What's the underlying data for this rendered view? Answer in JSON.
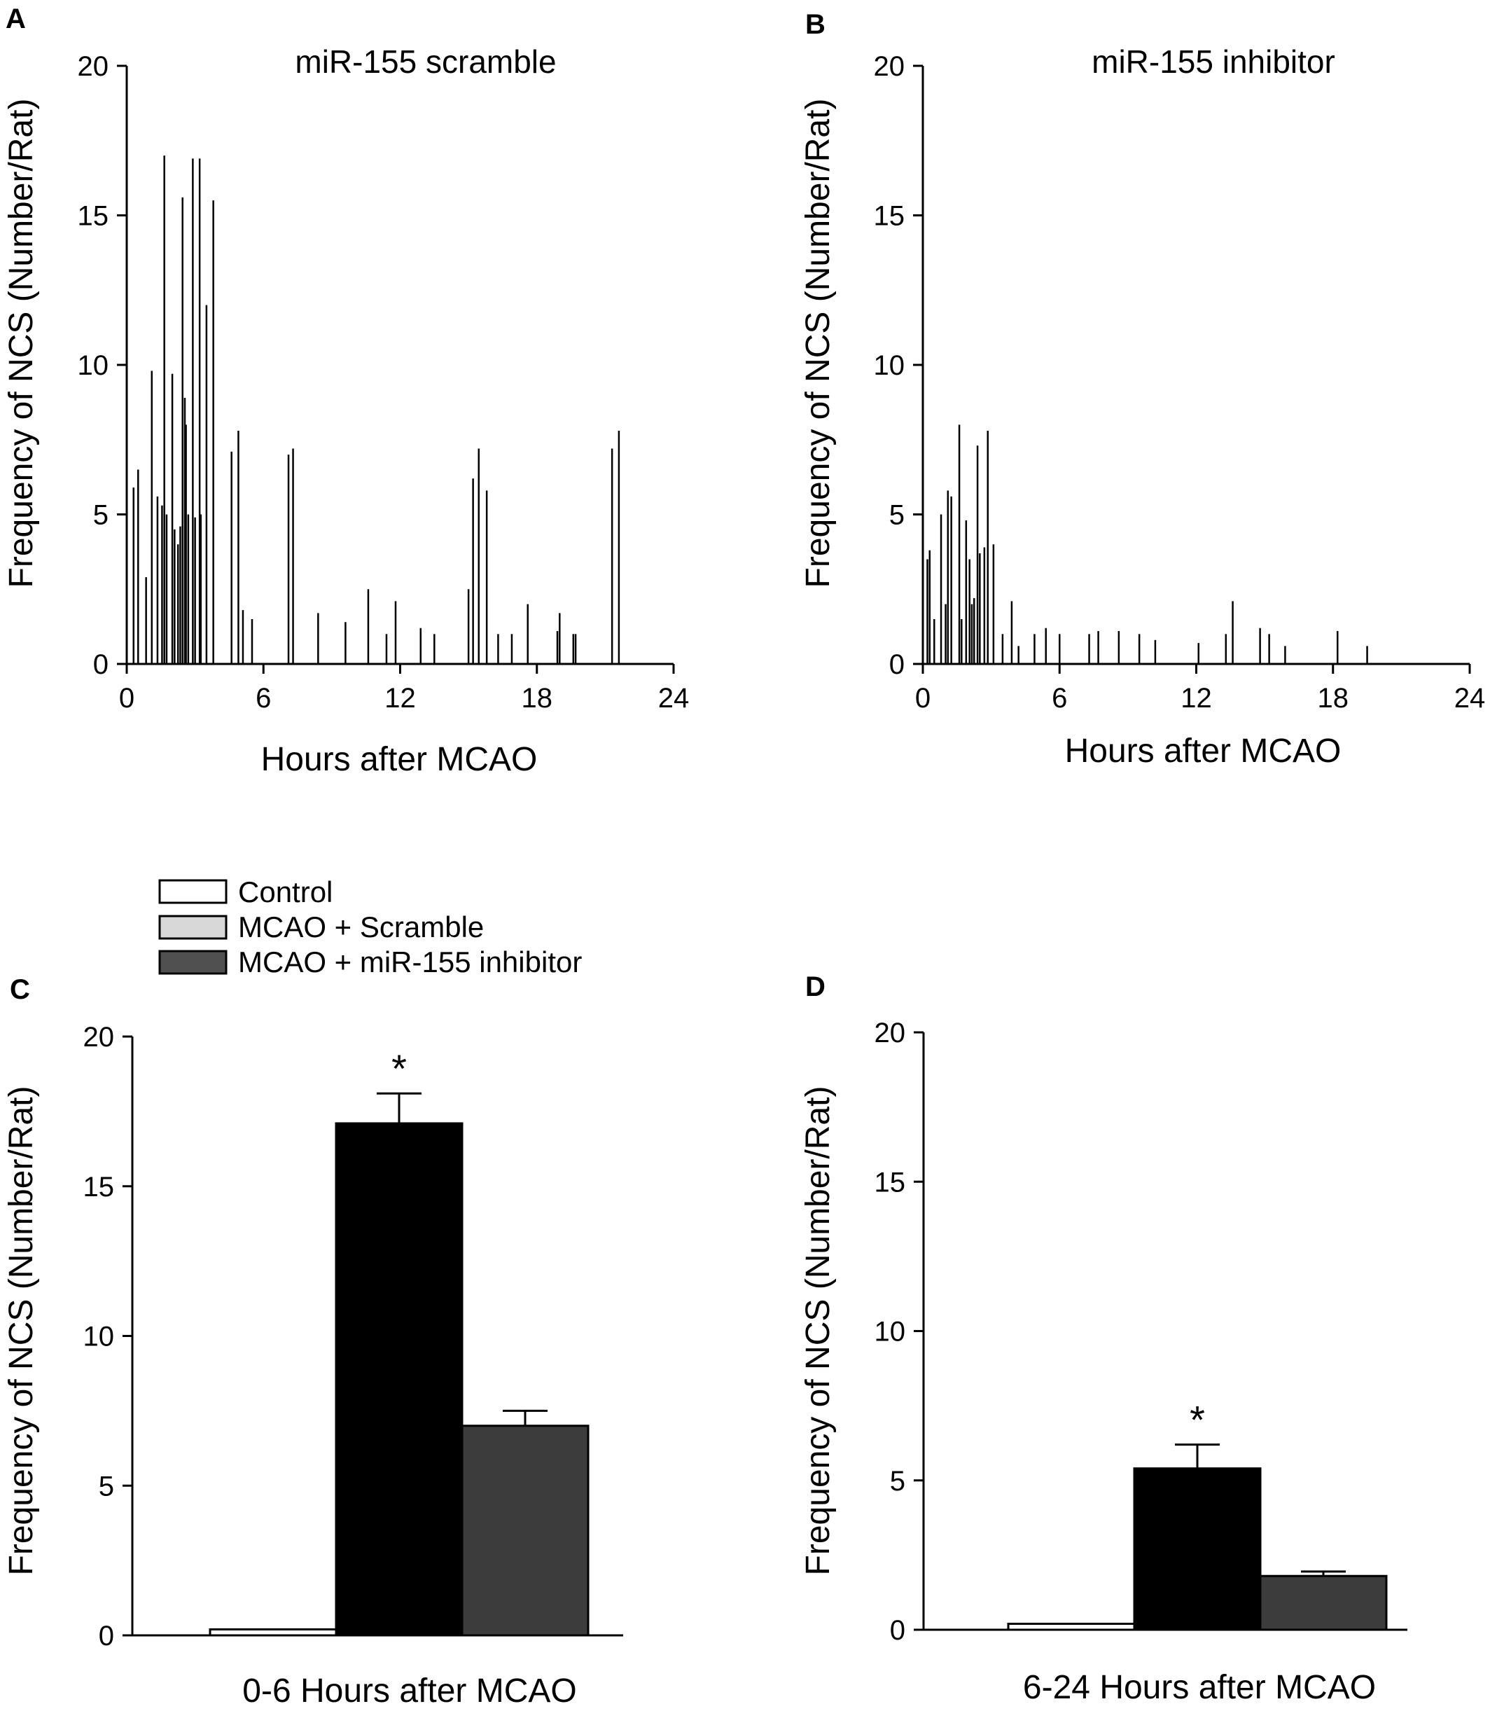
{
  "colors": {
    "control": "#ffffff",
    "scramble": "#000000",
    "inhibitor": "#3c3c3c",
    "legend_scramble": "#d8d8d8",
    "legend_inhibitor": "#505050"
  },
  "legend": {
    "items": [
      "Control",
      "MCAO + Scramble",
      "MCAO + miR-155 inhibitor"
    ]
  },
  "chart_data": [
    {
      "panel": "A",
      "type": "bar",
      "title": "miR-155 scramble",
      "xlabel": "Hours after MCAO",
      "ylabel": "Frequency of NCS (Number/Rat)",
      "xlim": [
        0,
        24
      ],
      "ylim": [
        0,
        20
      ],
      "xticks": [
        "0",
        "6",
        "12",
        "18",
        "24"
      ],
      "yticks": [
        "0",
        "5",
        "10",
        "15",
        "20"
      ],
      "x": [
        0.3,
        0.5,
        0.85,
        1.1,
        1.35,
        1.55,
        1.65,
        1.75,
        2.0,
        2.1,
        2.25,
        2.35,
        2.45,
        2.55,
        2.6,
        2.7,
        2.9,
        3.0,
        3.2,
        3.25,
        3.5,
        3.8,
        4.6,
        4.9,
        5.1,
        5.5,
        7.1,
        7.3,
        8.4,
        9.6,
        10.6,
        11.4,
        11.8,
        12.9,
        13.5,
        15.0,
        15.2,
        15.45,
        15.8,
        16.3,
        16.9,
        17.6,
        18.9,
        19.0,
        19.6,
        19.7,
        21.3,
        21.6
      ],
      "y": [
        5.9,
        6.5,
        2.9,
        9.8,
        5.6,
        5.3,
        17.0,
        5.0,
        9.7,
        4.5,
        4.0,
        4.6,
        15.6,
        8.9,
        8.0,
        5.0,
        16.9,
        4.9,
        16.9,
        5.0,
        12.0,
        15.5,
        7.1,
        7.8,
        1.8,
        1.5,
        7.0,
        7.2,
        1.7,
        1.4,
        2.5,
        1.0,
        2.1,
        1.2,
        1.0,
        2.5,
        6.2,
        7.2,
        5.8,
        1.0,
        1.0,
        2.0,
        1.1,
        1.7,
        1.0,
        1.0,
        7.2,
        7.8
      ]
    },
    {
      "panel": "B",
      "type": "bar",
      "title": "miR-155 inhibitor",
      "xlabel": "Hours after MCAO",
      "ylabel": "Frequency of NCS (Number/Rat)",
      "xlim": [
        0,
        24
      ],
      "ylim": [
        0,
        20
      ],
      "xticks": [
        "0",
        "6",
        "12",
        "18",
        "24"
      ],
      "yticks": [
        "0",
        "5",
        "10",
        "15",
        "20"
      ],
      "x": [
        0.2,
        0.3,
        0.5,
        0.8,
        1.0,
        1.1,
        1.25,
        1.6,
        1.7,
        1.9,
        2.05,
        2.15,
        2.25,
        2.4,
        2.5,
        2.7,
        2.85,
        3.1,
        3.5,
        3.9,
        4.2,
        4.9,
        5.4,
        6.0,
        7.3,
        7.7,
        8.6,
        9.5,
        10.2,
        12.1,
        13.3,
        13.6,
        14.8,
        15.2,
        15.9,
        18.2,
        19.5
      ],
      "y": [
        3.5,
        3.8,
        1.5,
        5.0,
        2.0,
        5.8,
        5.6,
        8.0,
        1.5,
        4.8,
        3.5,
        2.0,
        2.2,
        7.3,
        3.7,
        3.9,
        7.8,
        4.0,
        1.0,
        2.1,
        0.6,
        1.0,
        1.2,
        1.0,
        1.0,
        1.1,
        1.1,
        1.0,
        0.8,
        0.7,
        1.0,
        2.1,
        1.2,
        1.0,
        0.6,
        1.1,
        0.6
      ]
    },
    {
      "panel": "C",
      "type": "bar",
      "title": "",
      "xlabel": "0-6 Hours after MCAO",
      "ylabel": "Frequency of NCS (Number/Rat)",
      "ylim": [
        0,
        20
      ],
      "yticks": [
        "0",
        "5",
        "10",
        "15",
        "20"
      ],
      "categories": [
        "Control",
        "MCAO + Scramble",
        "MCAO + miR-155 inhibitor"
      ],
      "values": [
        0.2,
        17.1,
        7.0
      ],
      "errors": [
        0,
        1.0,
        0.5
      ],
      "annotations": [
        "",
        "*",
        ""
      ]
    },
    {
      "panel": "D",
      "type": "bar",
      "title": "",
      "xlabel": "6-24 Hours after MCAO",
      "ylabel": "Frequency of NCS (Number/Rat)",
      "ylim": [
        0,
        20
      ],
      "yticks": [
        "0",
        "5",
        "10",
        "15",
        "20"
      ],
      "categories": [
        "Control",
        "MCAO + Scramble",
        "MCAO + miR-155 inhibitor"
      ],
      "values": [
        0.2,
        5.4,
        1.8
      ],
      "errors": [
        0,
        0.8,
        0.15
      ],
      "annotations": [
        "",
        "*",
        ""
      ]
    }
  ]
}
